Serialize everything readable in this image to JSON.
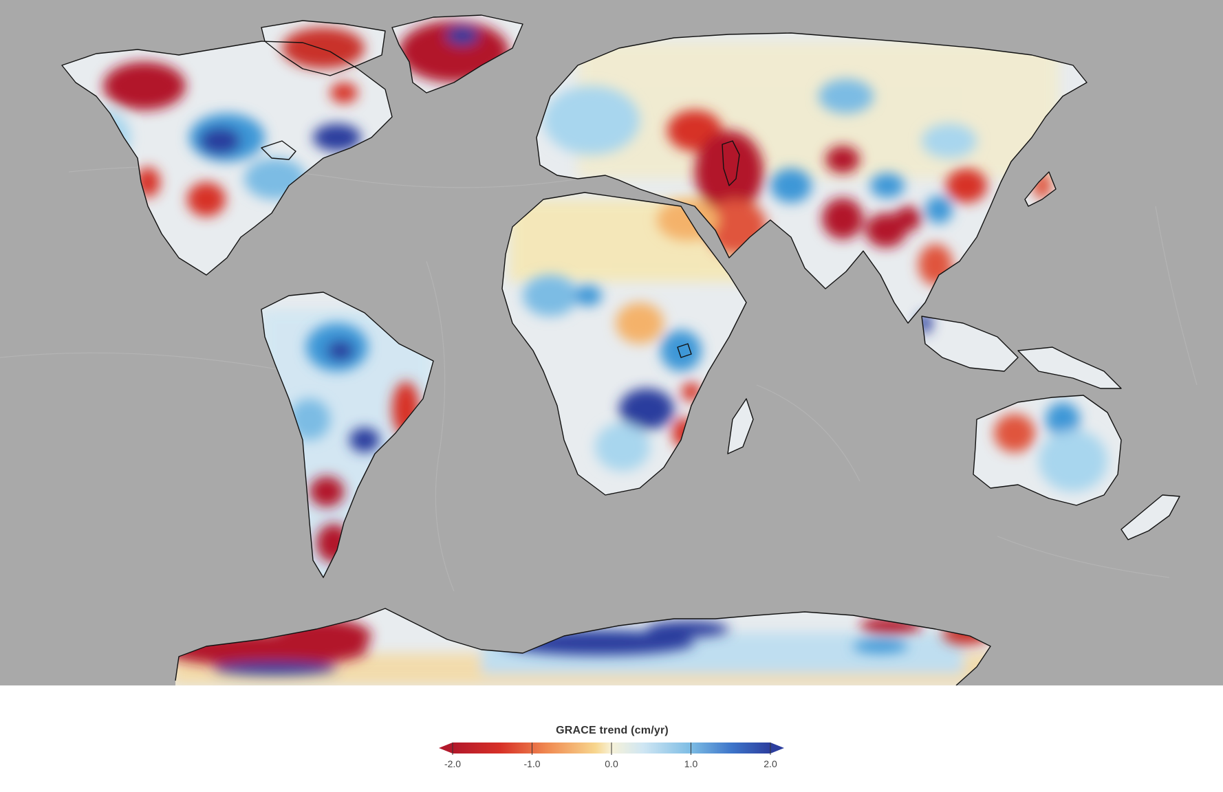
{
  "legend": {
    "title": "GRACE trend (cm/yr)",
    "ticks": [
      {
        "value": -2.0,
        "label": "-2.0"
      },
      {
        "value": -1.0,
        "label": "-1.0"
      },
      {
        "value": 0.0,
        "label": "0.0"
      },
      {
        "value": 1.0,
        "label": "1.0"
      },
      {
        "value": 2.0,
        "label": "2.0"
      }
    ],
    "range": [
      -2.0,
      2.0
    ],
    "colors": {
      "strong_negative": "#b2182b",
      "negative": "#e0553c",
      "mild_negative": "#f7c17a",
      "neutral": "#f7f2d8",
      "mild_positive": "#a8d6ee",
      "positive": "#3d97d7",
      "strong_positive": "#2c3e9e"
    }
  },
  "map": {
    "ocean_color": "#a9a9a9",
    "land_base_color": "#e8ecef",
    "coastline_color": "#111111"
  }
}
